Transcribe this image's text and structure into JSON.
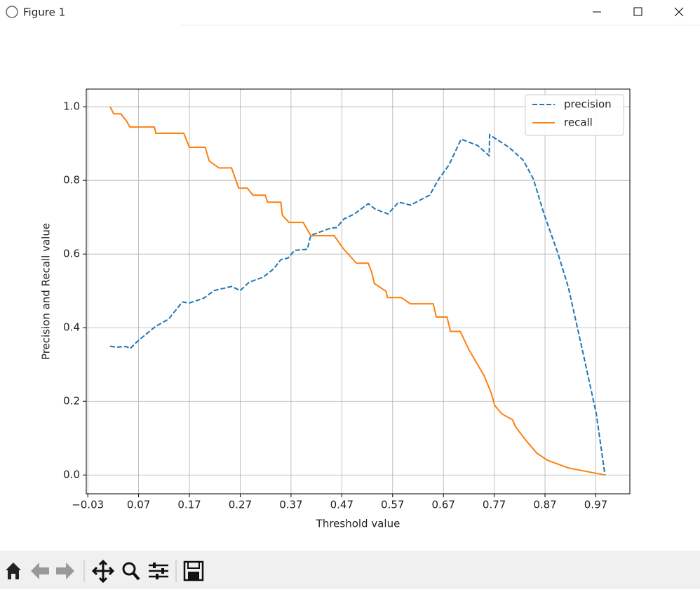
{
  "window": {
    "title": "Figure 1"
  },
  "chart_data": {
    "type": "line",
    "xlabel": "Threshold value",
    "ylabel": "Precision and Recall value",
    "xlim": [
      -0.033,
      1.037
    ],
    "ylim": [
      -0.051,
      1.048
    ],
    "xticks": [
      {
        "value": -0.03,
        "label": "−0.03"
      },
      0.07,
      0.17,
      0.27,
      0.37,
      0.47,
      0.57,
      0.67,
      0.77,
      0.87,
      0.97
    ],
    "yticks": [
      {
        "value": 0,
        "label": "0.0"
      },
      0.2,
      0.4,
      0.6,
      0.8,
      {
        "value": 1,
        "label": "1.0"
      }
    ],
    "grid": true,
    "legend": "upper right",
    "series": [
      {
        "name": "precision",
        "color": "#1f77b4",
        "dash": true,
        "x": [
          0.014,
          0.025,
          0.046,
          0.053,
          0.067,
          0.087,
          0.104,
          0.129,
          0.156,
          0.17,
          0.198,
          0.219,
          0.253,
          0.27,
          0.288,
          0.315,
          0.336,
          0.35,
          0.364,
          0.377,
          0.402,
          0.409,
          0.447,
          0.46,
          0.474,
          0.495,
          0.522,
          0.536,
          0.561,
          0.582,
          0.605,
          0.643,
          0.661,
          0.681,
          0.705,
          0.737,
          0.76,
          0.761,
          0.799,
          0.827,
          0.847,
          0.868,
          0.895,
          0.916,
          0.944,
          0.971,
          0.988
        ],
        "values": [
          0.35,
          0.347,
          0.349,
          0.343,
          0.362,
          0.385,
          0.404,
          0.423,
          0.47,
          0.467,
          0.48,
          0.501,
          0.512,
          0.501,
          0.524,
          0.537,
          0.56,
          0.585,
          0.589,
          0.61,
          0.613,
          0.651,
          0.67,
          0.672,
          0.695,
          0.709,
          0.737,
          0.722,
          0.709,
          0.741,
          0.733,
          0.76,
          0.804,
          0.842,
          0.912,
          0.895,
          0.867,
          0.924,
          0.89,
          0.855,
          0.804,
          0.709,
          0.604,
          0.509,
          0.337,
          0.166,
          0.0
        ]
      },
      {
        "name": "recall",
        "color": "#ff7f0e",
        "dash": false,
        "x": [
          0.014,
          0.021,
          0.035,
          0.046,
          0.053,
          0.101,
          0.104,
          0.159,
          0.17,
          0.201,
          0.209,
          0.228,
          0.253,
          0.267,
          0.284,
          0.295,
          0.319,
          0.324,
          0.35,
          0.353,
          0.366,
          0.394,
          0.409,
          0.455,
          0.474,
          0.499,
          0.522,
          0.529,
          0.534,
          0.557,
          0.56,
          0.587,
          0.605,
          0.65,
          0.656,
          0.677,
          0.684,
          0.703,
          0.72,
          0.75,
          0.764,
          0.771,
          0.785,
          0.806,
          0.812,
          0.833,
          0.854,
          0.875,
          0.916,
          0.988
        ],
        "values": [
          1.0,
          0.981,
          0.981,
          0.962,
          0.945,
          0.945,
          0.928,
          0.928,
          0.89,
          0.89,
          0.853,
          0.834,
          0.834,
          0.779,
          0.779,
          0.76,
          0.76,
          0.741,
          0.741,
          0.705,
          0.686,
          0.686,
          0.65,
          0.65,
          0.613,
          0.575,
          0.575,
          0.55,
          0.52,
          0.499,
          0.482,
          0.482,
          0.465,
          0.465,
          0.429,
          0.429,
          0.39,
          0.39,
          0.341,
          0.27,
          0.223,
          0.189,
          0.166,
          0.15,
          0.131,
          0.093,
          0.059,
          0.04,
          0.019,
          0.0
        ]
      }
    ]
  }
}
